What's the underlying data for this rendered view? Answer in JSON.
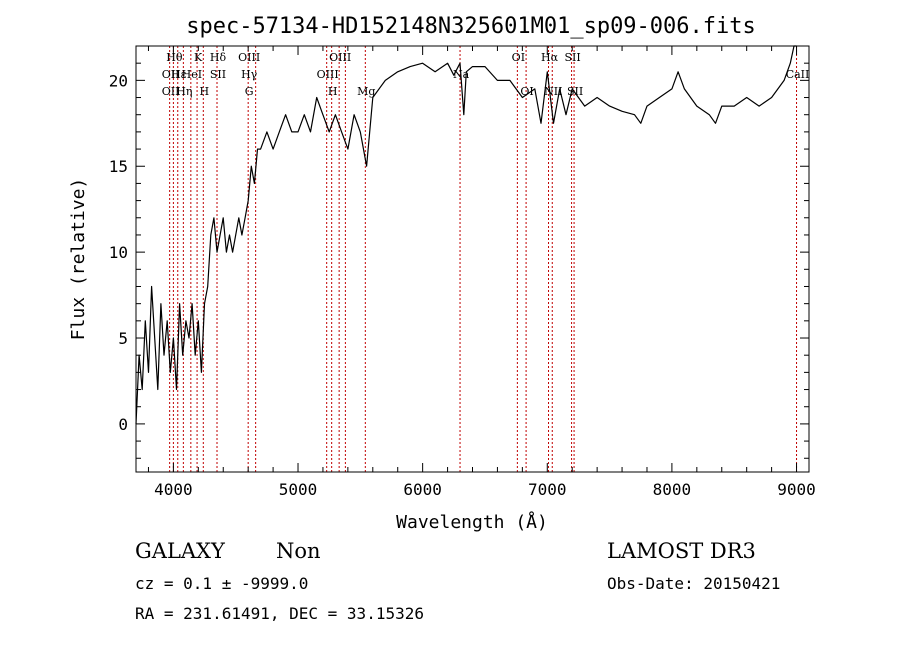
{
  "colors": {
    "background": "#ffffff",
    "ink": "#000000",
    "line_marker": "#c00000"
  },
  "chart_data": {
    "type": "line",
    "title": "spec-57134-HD152148N325601M01_sp09-006.fits",
    "xlabel": "Wavelength (Å)",
    "ylabel": "Flux (relative)",
    "xlim": [
      3700,
      9100
    ],
    "ylim": [
      -2.8,
      22
    ],
    "xticks": [
      4000,
      5000,
      6000,
      7000,
      8000,
      9000
    ],
    "xtick_labels": [
      "4000",
      "5000",
      "6000",
      "7000",
      "8000",
      "9000"
    ],
    "yticks": [
      0,
      5,
      10,
      15,
      20
    ],
    "ytick_labels": [
      "0",
      "5",
      "10",
      "15",
      "20"
    ],
    "grid": false,
    "series": [
      {
        "x": [
          3700,
          3725,
          3750,
          3775,
          3800,
          3825,
          3850,
          3875,
          3900,
          3925,
          3950,
          3975,
          4000,
          4025,
          4050,
          4075,
          4100,
          4125,
          4150,
          4175,
          4200,
          4225,
          4250,
          4275,
          4300,
          4325,
          4350,
          4375,
          4400,
          4425,
          4450,
          4475,
          4500,
          4525,
          4550,
          4575,
          4600,
          4625,
          4650,
          4675,
          4700,
          4750,
          4800,
          4850,
          4900,
          4950,
          5000,
          5050,
          5100,
          5150,
          5200,
          5250,
          5300,
          5350,
          5400,
          5450,
          5500,
          5550,
          5600,
          5700,
          5800,
          5900,
          6000,
          6100,
          6200,
          6250,
          6300,
          6330,
          6350,
          6400,
          6500,
          6600,
          6700,
          6800,
          6900,
          6950,
          7000,
          7050,
          7100,
          7150,
          7200,
          7300,
          7400,
          7500,
          7600,
          7700,
          7750,
          7800,
          7900,
          8000,
          8050,
          8100,
          8200,
          8300,
          8350,
          8400,
          8500,
          8600,
          8700,
          8800,
          8900,
          8950,
          8980,
          9000
        ],
        "y": [
          0,
          4,
          2,
          6,
          3,
          8,
          5,
          2,
          7,
          4,
          6,
          3,
          5,
          2,
          7,
          4,
          6,
          5,
          7,
          4,
          6,
          3,
          7,
          8,
          11,
          12,
          10,
          11,
          12,
          10,
          11,
          10,
          11,
          12,
          11,
          12,
          13,
          15,
          14,
          16,
          16,
          17,
          16,
          17,
          18,
          17,
          17,
          18,
          17,
          19,
          18,
          17,
          18,
          17,
          16,
          18,
          17,
          15,
          19,
          20,
          20.5,
          20.8,
          21,
          20.5,
          21,
          20.3,
          21,
          18,
          20.5,
          20.8,
          20.8,
          20,
          20,
          19,
          19.5,
          17.5,
          20.5,
          17.5,
          19.5,
          18,
          19.5,
          18.5,
          19,
          18.5,
          18.2,
          18,
          17.5,
          18.5,
          19,
          19.5,
          20.5,
          19.5,
          18.5,
          18,
          17.5,
          18.5,
          18.5,
          19,
          18.5,
          19,
          20,
          21,
          22,
          22
        ]
      }
    ],
    "line_markers": [
      {
        "x": 3970,
        "labels": [
          {
            "text": "OII",
            "row": 1
          },
          {
            "text": "OII",
            "row": 2
          }
        ]
      },
      {
        "x": 4000,
        "labels": [
          {
            "text": "Hθ",
            "row": 0
          }
        ]
      },
      {
        "x": 4035,
        "labels": [
          {
            "text": "Hε",
            "row": 1
          }
        ]
      },
      {
        "x": 4080,
        "labels": [
          {
            "text": "Hη",
            "row": 2
          }
        ]
      },
      {
        "x": 4140,
        "labels": [
          {
            "text": "HeI",
            "row": 1
          }
        ]
      },
      {
        "x": 4190,
        "labels": [
          {
            "text": "K",
            "row": 0
          }
        ]
      },
      {
        "x": 4240,
        "labels": [
          {
            "text": "H",
            "row": 2
          }
        ]
      },
      {
        "x": 4350,
        "labels": [
          {
            "text": "Hδ",
            "row": 0
          },
          {
            "text": "SII",
            "row": 1
          }
        ]
      },
      {
        "x": 4600,
        "labels": [
          {
            "text": "OIII",
            "row": 0
          },
          {
            "text": "Hγ",
            "row": 1
          },
          {
            "text": "G",
            "row": 2
          }
        ]
      },
      {
        "x": 4660,
        "labels": []
      },
      {
        "x": 5230,
        "labels": [
          {
            "text": "OIII",
            "row": 1
          }
        ]
      },
      {
        "x": 5270,
        "labels": [
          {
            "text": "H",
            "row": 2
          }
        ]
      },
      {
        "x": 5330,
        "labels": [
          {
            "text": "OIII",
            "row": 0
          }
        ]
      },
      {
        "x": 5380,
        "labels": []
      },
      {
        "x": 5540,
        "labels": [
          {
            "text": "Mg",
            "row": 2
          }
        ]
      },
      {
        "x": 6300,
        "labels": [
          {
            "text": "Na",
            "row": 1
          }
        ]
      },
      {
        "x": 6760,
        "labels": [
          {
            "text": "OI",
            "row": 0
          }
        ]
      },
      {
        "x": 6830,
        "labels": [
          {
            "text": "OI",
            "row": 2
          }
        ]
      },
      {
        "x": 7010,
        "labels": [
          {
            "text": "Hα",
            "row": 0
          }
        ]
      },
      {
        "x": 7040,
        "labels": [
          {
            "text": "NII",
            "row": 2
          }
        ]
      },
      {
        "x": 7195,
        "labels": [
          {
            "text": "SII",
            "row": 0
          }
        ]
      },
      {
        "x": 7215,
        "labels": [
          {
            "text": "SII",
            "row": 2
          }
        ]
      },
      {
        "x": 9000,
        "labels": [
          {
            "text": "CaII",
            "row": 1
          }
        ]
      }
    ]
  },
  "info": {
    "class_label": "GALAXY",
    "subclass_label": "Non",
    "survey": "LAMOST DR3",
    "cz_line": "cz = 0.1 ± -9999.0",
    "obs_date_line": "Obs-Date: 20150421",
    "coords_line": "RA = 231.61491, DEC =  33.15326"
  }
}
